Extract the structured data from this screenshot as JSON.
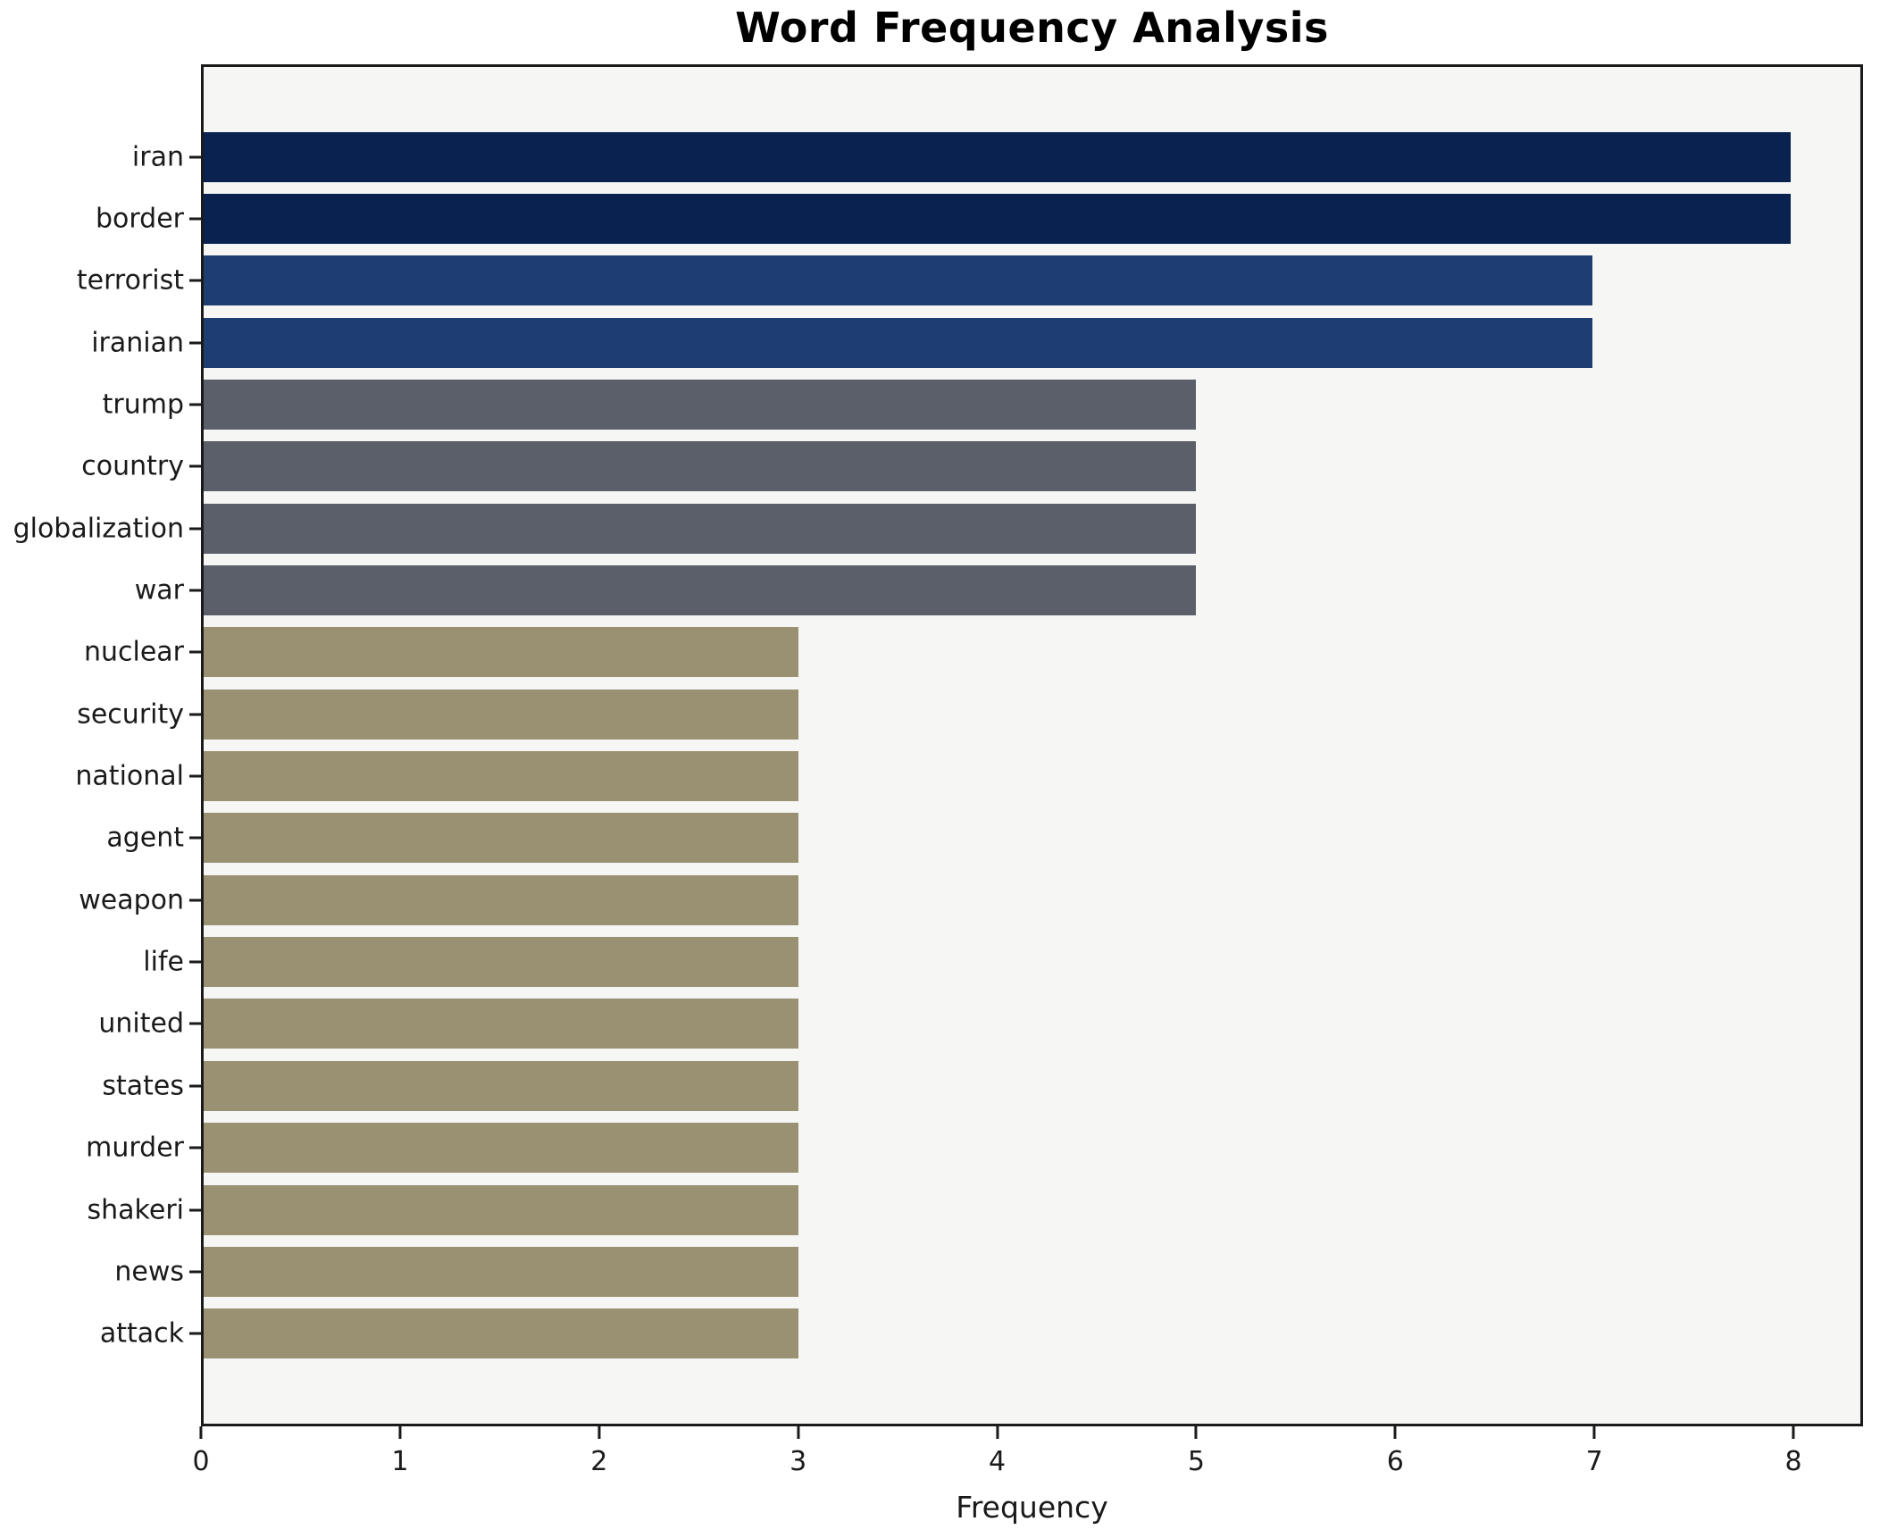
{
  "title": "Word Frequency Analysis",
  "chart_data": {
    "type": "bar",
    "orientation": "horizontal",
    "title": "Word Frequency Analysis",
    "xlabel": "Frequency",
    "ylabel": "",
    "categories": [
      "iran",
      "border",
      "terrorist",
      "iranian",
      "trump",
      "country",
      "globalization",
      "war",
      "nuclear",
      "security",
      "national",
      "agent",
      "weapon",
      "life",
      "united",
      "states",
      "murder",
      "shakeri",
      "news",
      "attack"
    ],
    "values": [
      8,
      8,
      7,
      7,
      5,
      5,
      5,
      5,
      3,
      3,
      3,
      3,
      3,
      3,
      3,
      3,
      3,
      3,
      3,
      3
    ],
    "bar_colors": [
      "#092250",
      "#092250",
      "#1e3d72",
      "#1e3d72",
      "#5b5f6a",
      "#5b5f6a",
      "#5b5f6a",
      "#5b5f6a",
      "#9a9173",
      "#9a9173",
      "#9a9173",
      "#9a9173",
      "#9a9173",
      "#9a9173",
      "#9a9173",
      "#9a9173",
      "#9a9173",
      "#9a9173",
      "#9a9173",
      "#9a9173"
    ],
    "x_ticks": [
      "0",
      "1",
      "2",
      "3",
      "4",
      "5",
      "6",
      "7",
      "8"
    ],
    "xlim": [
      0,
      8.35
    ],
    "grid": false,
    "legend": null,
    "plot_bg": "#f6f6f4",
    "figure_bg": "#ffffff",
    "spine_color": "#1a1a1a"
  }
}
